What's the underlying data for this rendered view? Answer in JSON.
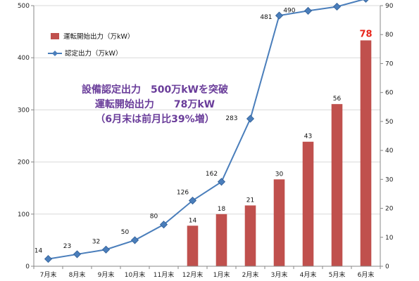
{
  "chart_data": {
    "type": "bar",
    "categories": [
      "7月末",
      "8月末",
      "9月末",
      "10月末",
      "11月末",
      "12月末",
      "1月末",
      "2月末",
      "3月末",
      "4月末",
      "5月末",
      "6月末"
    ],
    "series": [
      {
        "name": "運転開始出力（万kW）",
        "type": "bar",
        "axis": "right",
        "color": "#c0504d",
        "values": [
          null,
          null,
          null,
          null,
          null,
          14,
          18,
          21,
          30,
          43,
          56,
          78
        ]
      },
      {
        "name": "認定出力（万kW）",
        "type": "line",
        "axis": "left",
        "color": "#4a7ebb",
        "marker": "diamond",
        "values": [
          14,
          23,
          32,
          50,
          80,
          126,
          162,
          283,
          481,
          490,
          498,
          513
        ]
      }
    ],
    "y_left": {
      "ylim": [
        0,
        500
      ],
      "ticks": [
        0,
        100,
        200,
        300,
        400,
        500
      ]
    },
    "y_right": {
      "ylim": [
        0,
        90
      ],
      "ticks": [
        0,
        10,
        20,
        30,
        40,
        50,
        60,
        70,
        80,
        90
      ]
    },
    "legend_position": "top-left",
    "grid": "horizontal",
    "annotation_lines": [
      "設備認定出力　500万kWを突破",
      "運転開始出力　　78万kW",
      "（6月末は前月比39%増）"
    ],
    "colors": {
      "bar": "#c0504d",
      "line": "#4a7ebb",
      "annotation": "#6a3d9a",
      "last_bar_label": "#e8261c",
      "last_line_label": "#6a3d9a",
      "grid": "#d9d9d9"
    }
  }
}
